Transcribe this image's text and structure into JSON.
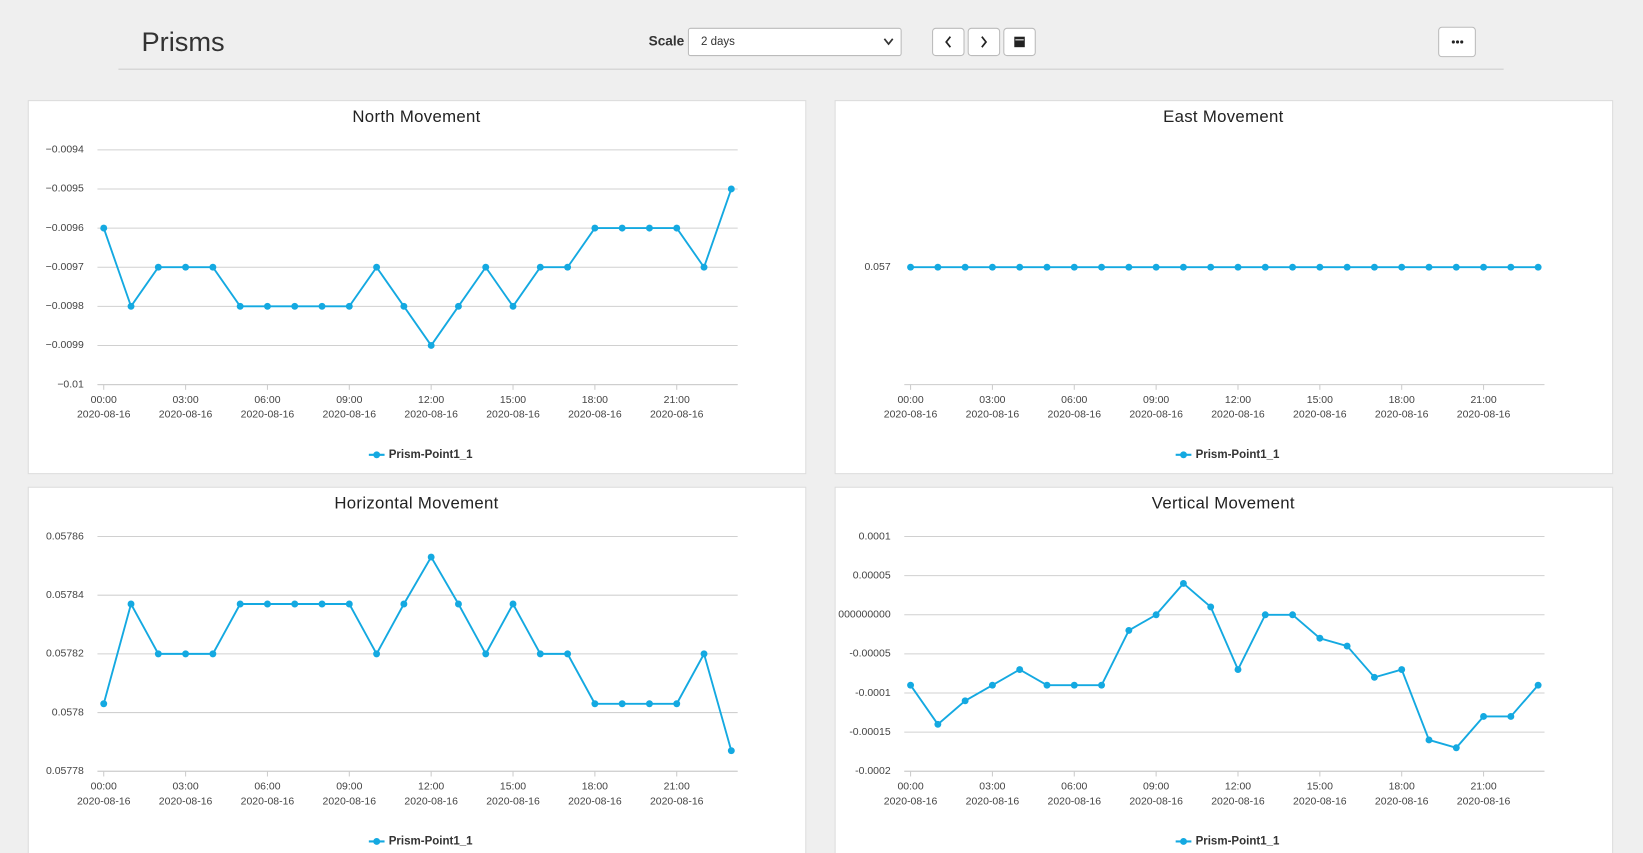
{
  "header": {
    "title": "Prisms",
    "scale_label": "Scale",
    "scale_value": "2 days"
  },
  "chart_data": [
    {
      "type": "line",
      "title": "North Movement",
      "x": [
        "2020-08-16 00:00",
        "2020-08-16 01:00",
        "2020-08-16 02:00",
        "2020-08-16 03:00",
        "2020-08-16 04:00",
        "2020-08-16 05:00",
        "2020-08-16 06:00",
        "2020-08-16 07:00",
        "2020-08-16 08:00",
        "2020-08-16 09:00",
        "2020-08-16 10:00",
        "2020-08-16 11:00",
        "2020-08-16 12:00",
        "2020-08-16 13:00",
        "2020-08-16 14:00",
        "2020-08-16 15:00",
        "2020-08-16 16:00",
        "2020-08-16 17:00",
        "2020-08-16 18:00",
        "2020-08-16 19:00",
        "2020-08-16 20:00",
        "2020-08-16 21:00",
        "2020-08-16 22:00",
        "2020-08-16 23:00"
      ],
      "xticks": [
        {
          "value": "2020-08-16 00:00",
          "label": [
            "00:00",
            "2020-08-16"
          ]
        },
        {
          "value": "2020-08-16 03:00",
          "label": [
            "03:00",
            "2020-08-16"
          ]
        },
        {
          "value": "2020-08-16 06:00",
          "label": [
            "06:00",
            "2020-08-16"
          ]
        },
        {
          "value": "2020-08-16 09:00",
          "label": [
            "09:00",
            "2020-08-16"
          ]
        },
        {
          "value": "2020-08-16 12:00",
          "label": [
            "12:00",
            "2020-08-16"
          ]
        },
        {
          "value": "2020-08-16 15:00",
          "label": [
            "15:00",
            "2020-08-16"
          ]
        },
        {
          "value": "2020-08-16 18:00",
          "label": [
            "18:00",
            "2020-08-16"
          ]
        },
        {
          "value": "2020-08-16 21:00",
          "label": [
            "21:00",
            "2020-08-16"
          ]
        }
      ],
      "ylim": [
        -0.01,
        -0.0094
      ],
      "yticks": [
        {
          "value": -0.0094,
          "label": "−0.0094"
        },
        {
          "value": -0.0095,
          "label": "−0.0095"
        },
        {
          "value": -0.0096,
          "label": "−0.0096"
        },
        {
          "value": -0.0097,
          "label": "−0.0097"
        },
        {
          "value": -0.0098,
          "label": "−0.0098"
        },
        {
          "value": -0.0099,
          "label": "−0.0099"
        },
        {
          "value": -0.01,
          "label": "−0.01"
        }
      ],
      "grid": true,
      "legend": "bottom",
      "series": [
        {
          "name": "Prism-Point1_1",
          "color": "#14a9e1",
          "values": [
            -0.0096,
            -0.0098,
            -0.0097,
            -0.0097,
            -0.0097,
            -0.0098,
            -0.0098,
            -0.0098,
            -0.0098,
            -0.0098,
            -0.0097,
            -0.0098,
            -0.0099,
            -0.0098,
            -0.0097,
            -0.0098,
            -0.0097,
            -0.0097,
            -0.0096,
            -0.0096,
            -0.0096,
            -0.0096,
            -0.0097,
            -0.0095
          ]
        }
      ]
    },
    {
      "type": "line",
      "title": "East Movement",
      "x": [
        "2020-08-16 00:00",
        "2020-08-16 01:00",
        "2020-08-16 02:00",
        "2020-08-16 03:00",
        "2020-08-16 04:00",
        "2020-08-16 05:00",
        "2020-08-16 06:00",
        "2020-08-16 07:00",
        "2020-08-16 08:00",
        "2020-08-16 09:00",
        "2020-08-16 10:00",
        "2020-08-16 11:00",
        "2020-08-16 12:00",
        "2020-08-16 13:00",
        "2020-08-16 14:00",
        "2020-08-16 15:00",
        "2020-08-16 16:00",
        "2020-08-16 17:00",
        "2020-08-16 18:00",
        "2020-08-16 19:00",
        "2020-08-16 20:00",
        "2020-08-16 21:00",
        "2020-08-16 22:00",
        "2020-08-16 23:00"
      ],
      "xticks": [
        {
          "value": "2020-08-16 00:00",
          "label": [
            "00:00",
            "2020-08-16"
          ]
        },
        {
          "value": "2020-08-16 03:00",
          "label": [
            "03:00",
            "2020-08-16"
          ]
        },
        {
          "value": "2020-08-16 06:00",
          "label": [
            "06:00",
            "2020-08-16"
          ]
        },
        {
          "value": "2020-08-16 09:00",
          "label": [
            "09:00",
            "2020-08-16"
          ]
        },
        {
          "value": "2020-08-16 12:00",
          "label": [
            "12:00",
            "2020-08-16"
          ]
        },
        {
          "value": "2020-08-16 15:00",
          "label": [
            "15:00",
            "2020-08-16"
          ]
        },
        {
          "value": "2020-08-16 18:00",
          "label": [
            "18:00",
            "2020-08-16"
          ]
        },
        {
          "value": "2020-08-16 21:00",
          "label": [
            "21:00",
            "2020-08-16"
          ]
        }
      ],
      "ylim": [
        0.0569,
        0.0571
      ],
      "yticks": [
        0.057
      ],
      "grid": false,
      "legend": "bottom",
      "series": [
        {
          "name": "Prism-Point1_1",
          "color": "#14a9e1",
          "values": [
            0.057,
            0.057,
            0.057,
            0.057,
            0.057,
            0.057,
            0.057,
            0.057,
            0.057,
            0.057,
            0.057,
            0.057,
            0.057,
            0.057,
            0.057,
            0.057,
            0.057,
            0.057,
            0.057,
            0.057,
            0.057,
            0.057,
            0.057,
            0.057
          ]
        }
      ]
    },
    {
      "type": "line",
      "title": "Horizontal Movement",
      "x": [
        "2020-08-16 00:00",
        "2020-08-16 01:00",
        "2020-08-16 02:00",
        "2020-08-16 03:00",
        "2020-08-16 04:00",
        "2020-08-16 05:00",
        "2020-08-16 06:00",
        "2020-08-16 07:00",
        "2020-08-16 08:00",
        "2020-08-16 09:00",
        "2020-08-16 10:00",
        "2020-08-16 11:00",
        "2020-08-16 12:00",
        "2020-08-16 13:00",
        "2020-08-16 14:00",
        "2020-08-16 15:00",
        "2020-08-16 16:00",
        "2020-08-16 17:00",
        "2020-08-16 18:00",
        "2020-08-16 19:00",
        "2020-08-16 20:00",
        "2020-08-16 21:00",
        "2020-08-16 22:00",
        "2020-08-16 23:00"
      ],
      "xticks": [
        {
          "value": "2020-08-16 00:00",
          "label": [
            "00:00",
            "2020-08-16"
          ]
        },
        {
          "value": "2020-08-16 03:00",
          "label": [
            "03:00",
            "2020-08-16"
          ]
        },
        {
          "value": "2020-08-16 06:00",
          "label": [
            "06:00",
            "2020-08-16"
          ]
        },
        {
          "value": "2020-08-16 09:00",
          "label": [
            "09:00",
            "2020-08-16"
          ]
        },
        {
          "value": "2020-08-16 12:00",
          "label": [
            "12:00",
            "2020-08-16"
          ]
        },
        {
          "value": "2020-08-16 15:00",
          "label": [
            "15:00",
            "2020-08-16"
          ]
        },
        {
          "value": "2020-08-16 18:00",
          "label": [
            "18:00",
            "2020-08-16"
          ]
        },
        {
          "value": "2020-08-16 21:00",
          "label": [
            "21:00",
            "2020-08-16"
          ]
        }
      ],
      "ylim": [
        0.05778,
        0.05786
      ],
      "yticks": [
        0.05786,
        0.05784,
        0.05782,
        {
          "value": 0.0578,
          "label": "0.0578"
        },
        0.05778
      ],
      "grid": true,
      "legend": "bottom",
      "series": [
        {
          "name": "Prism-Point1_1",
          "color": "#14a9e1",
          "values": [
            0.057803,
            0.057837,
            0.05782,
            0.05782,
            0.05782,
            0.057837,
            0.057837,
            0.057837,
            0.057837,
            0.057837,
            0.05782,
            0.057837,
            0.057853,
            0.057837,
            0.05782,
            0.057837,
            0.05782,
            0.05782,
            0.057803,
            0.057803,
            0.057803,
            0.057803,
            0.05782,
            0.057787
          ]
        }
      ]
    },
    {
      "type": "line",
      "title": "Vertical Movement",
      "x": [
        "2020-08-16 00:00",
        "2020-08-16 01:00",
        "2020-08-16 02:00",
        "2020-08-16 03:00",
        "2020-08-16 04:00",
        "2020-08-16 05:00",
        "2020-08-16 06:00",
        "2020-08-16 07:00",
        "2020-08-16 08:00",
        "2020-08-16 09:00",
        "2020-08-16 10:00",
        "2020-08-16 11:00",
        "2020-08-16 12:00",
        "2020-08-16 13:00",
        "2020-08-16 14:00",
        "2020-08-16 15:00",
        "2020-08-16 16:00",
        "2020-08-16 17:00",
        "2020-08-16 18:00",
        "2020-08-16 19:00",
        "2020-08-16 20:00",
        "2020-08-16 21:00",
        "2020-08-16 22:00",
        "2020-08-16 23:00"
      ],
      "xticks": [
        {
          "value": "2020-08-16 00:00",
          "label": [
            "00:00",
            "2020-08-16"
          ]
        },
        {
          "value": "2020-08-16 03:00",
          "label": [
            "03:00",
            "2020-08-16"
          ]
        },
        {
          "value": "2020-08-16 06:00",
          "label": [
            "06:00",
            "2020-08-16"
          ]
        },
        {
          "value": "2020-08-16 09:00",
          "label": [
            "09:00",
            "2020-08-16"
          ]
        },
        {
          "value": "2020-08-16 12:00",
          "label": [
            "12:00",
            "2020-08-16"
          ]
        },
        {
          "value": "2020-08-16 15:00",
          "label": [
            "15:00",
            "2020-08-16"
          ]
        },
        {
          "value": "2020-08-16 18:00",
          "label": [
            "18:00",
            "2020-08-16"
          ]
        },
        {
          "value": "2020-08-16 21:00",
          "label": [
            "21:00",
            "2020-08-16"
          ]
        }
      ],
      "ylim": [
        -0.0002,
        0.0001
      ],
      "yticks": [
        0.0001,
        5e-05,
        {
          "value": 0,
          "label": "000000000"
        },
        {
          "value": -5e-05,
          "label": "-0.00005"
        },
        -0.0001,
        -0.00015,
        -0.0002
      ],
      "grid": true,
      "legend": "bottom",
      "series": [
        {
          "name": "Prism-Point1_1",
          "color": "#14a9e1",
          "values": [
            -9e-05,
            -0.00014,
            -0.00011,
            -9e-05,
            -7e-05,
            -9e-05,
            -9e-05,
            -9e-05,
            -2e-05,
            0,
            4e-05,
            1e-05,
            -7e-05,
            0,
            0,
            -3e-05,
            -4e-05,
            -8e-05,
            -7e-05,
            -0.00016,
            -0.00017,
            -0.00013,
            -0.00013,
            -9e-05
          ]
        }
      ]
    }
  ]
}
